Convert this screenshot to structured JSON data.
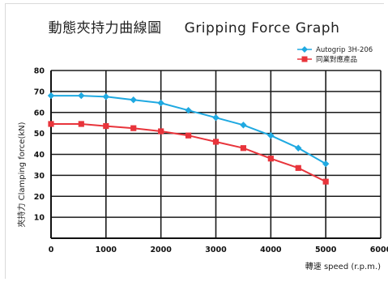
{
  "title": {
    "zh": "動態夾持力曲線圖",
    "en": "Gripping Force Graph"
  },
  "chart_data": {
    "type": "line",
    "title": "動態夾持力曲線圖 Gripping Force Graph",
    "xlabel": "轉速 speed (r.p.m.)",
    "ylabel": "夾持力 Clamping force(kN)",
    "xlim": [
      0,
      6000
    ],
    "ylim": [
      0,
      80
    ],
    "x_ticks": [
      "0",
      "1000",
      "2000",
      "3000",
      "4000",
      "5000",
      "6000"
    ],
    "y_ticks": [
      "10",
      "20",
      "30",
      "40",
      "50",
      "60",
      "70",
      "80"
    ],
    "grid": true,
    "legend_position": "top-right",
    "series": [
      {
        "name": "Autogrip 3H-206",
        "color": "#1fa9e1",
        "marker": "diamond",
        "x": [
          0,
          550,
          1000,
          1500,
          2000,
          2500,
          3000,
          3500,
          4000,
          4500,
          5000
        ],
        "y": [
          68,
          68,
          67.5,
          66,
          64.5,
          61,
          57.5,
          54,
          49,
          43,
          35.5
        ]
      },
      {
        "name": "同業對應產品",
        "color": "#e8343b",
        "marker": "square",
        "x": [
          0,
          550,
          1000,
          1500,
          2000,
          2500,
          3000,
          3500,
          4000,
          4500,
          5000
        ],
        "y": [
          54.5,
          54.5,
          53.5,
          52.5,
          51,
          49,
          46,
          43,
          38,
          33.5,
          27
        ]
      }
    ]
  }
}
